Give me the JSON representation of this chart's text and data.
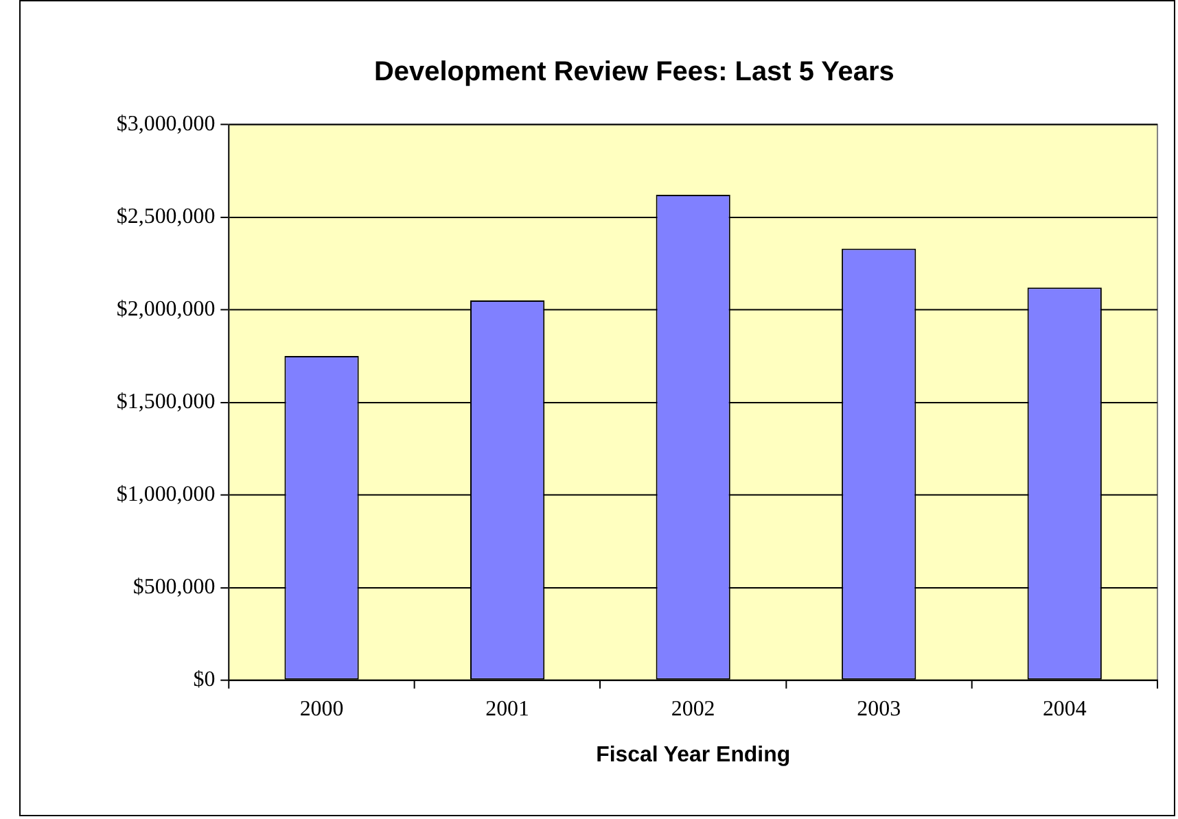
{
  "chart_data": {
    "type": "bar",
    "title": "Development Review Fees: Last 5 Years",
    "xlabel": "Fiscal Year Ending",
    "categories": [
      "2000",
      "2001",
      "2002",
      "2003",
      "2004"
    ],
    "values": [
      1750000,
      2050000,
      2620000,
      2330000,
      2120000
    ],
    "color": "#8080ff",
    "ylim": [
      0,
      3000000
    ],
    "yticks": [
      {
        "value": 0,
        "label": "$0"
      },
      {
        "value": 500000,
        "label": "$500,000"
      },
      {
        "value": 1000000,
        "label": "$1,000,000"
      },
      {
        "value": 1500000,
        "label": "$1,500,000"
      },
      {
        "value": 2000000,
        "label": "$2,000,000"
      },
      {
        "value": 2500000,
        "label": "$2,500,000"
      },
      {
        "value": 3000000,
        "label": "$3,000,000"
      }
    ],
    "grid": "y",
    "legend": false
  }
}
